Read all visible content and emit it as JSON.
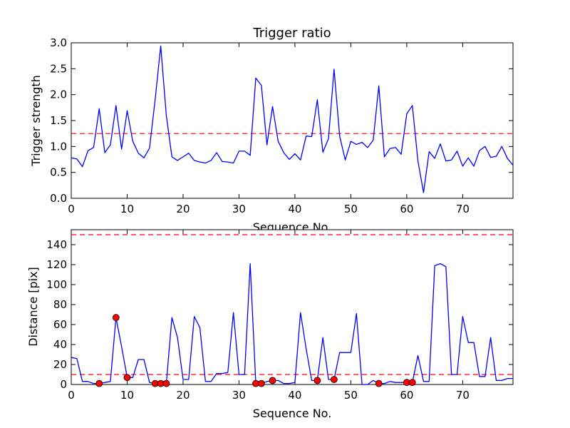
{
  "chart_data": [
    {
      "type": "line",
      "title": "Trigger ratio",
      "xlabel": "Sequence No.",
      "ylabel": "Trigger strength",
      "xlim": [
        0,
        79
      ],
      "ylim": [
        0,
        3.0
      ],
      "x_ticks": [
        0,
        10,
        20,
        30,
        40,
        50,
        60,
        70
      ],
      "y_ticks": [
        0.0,
        0.5,
        1.0,
        1.5,
        2.0,
        2.5,
        3.0
      ],
      "y_tick_labels": [
        "0.0",
        "0.5",
        "1.0",
        "1.5",
        "2.0",
        "2.5",
        "3.0"
      ],
      "grid": false,
      "series": [
        {
          "color": "#0000ff",
          "values": [
            0.78,
            0.76,
            0.61,
            0.92,
            0.98,
            1.73,
            0.88,
            1.03,
            1.79,
            0.95,
            1.69,
            1.1,
            0.87,
            0.78,
            0.97,
            1.9,
            2.94,
            1.6,
            0.8,
            0.73,
            0.8,
            0.87,
            0.73,
            0.7,
            0.68,
            0.73,
            0.88,
            0.71,
            0.7,
            0.68,
            0.91,
            0.91,
            0.83,
            2.32,
            2.18,
            1.03,
            1.77,
            1.1,
            0.88,
            0.75,
            0.86,
            0.74,
            1.2,
            1.19,
            1.9,
            0.89,
            1.15,
            2.49,
            1.2,
            0.74,
            1.1,
            1.04,
            1.08,
            0.98,
            1.12,
            2.17,
            0.8,
            0.96,
            0.98,
            0.85,
            1.63,
            1.79,
            0.72,
            0.11,
            0.9,
            0.77,
            1.05,
            0.72,
            0.74,
            0.91,
            0.62,
            0.78,
            0.62,
            0.92,
            1.0,
            0.79,
            0.81,
            1.0,
            0.77,
            0.64
          ]
        }
      ],
      "reference_lines": [
        {
          "y": 1.25,
          "color": "#ff0000",
          "style": "dashed"
        }
      ]
    },
    {
      "type": "line",
      "xlabel": "Sequence No.",
      "ylabel": "Distance [pix]",
      "xlim": [
        0,
        79
      ],
      "ylim": [
        0,
        155
      ],
      "x_ticks": [
        0,
        10,
        20,
        30,
        40,
        50,
        60,
        70
      ],
      "y_ticks": [
        0,
        20,
        40,
        60,
        80,
        100,
        120,
        140
      ],
      "y_tick_labels": [
        "0",
        "20",
        "40",
        "60",
        "80",
        "100",
        "120",
        "140"
      ],
      "grid": false,
      "series": [
        {
          "color": "#0000ff",
          "values": [
            27,
            26,
            3,
            3,
            1,
            1,
            2,
            3,
            67,
            38,
            7,
            7,
            25,
            25,
            2,
            1,
            1,
            1,
            67,
            47,
            5,
            5,
            68,
            57,
            3,
            3,
            11,
            11,
            12,
            72,
            10,
            10,
            121,
            1,
            1,
            3,
            4,
            4,
            1,
            1,
            2,
            72,
            36,
            4,
            4,
            47,
            5,
            5,
            32,
            32,
            32,
            71,
            0,
            0,
            4,
            1,
            1,
            3,
            2,
            2,
            2,
            2,
            29,
            3,
            3,
            119,
            121,
            118,
            10,
            10,
            68,
            42,
            42,
            8,
            8,
            47,
            4,
            4,
            6,
            6
          ]
        }
      ],
      "markers": {
        "color": "#ff0000",
        "x": [
          5,
          8,
          10,
          15,
          16,
          17,
          33,
          34,
          36,
          44,
          47,
          55,
          60,
          61
        ],
        "y": [
          1,
          67,
          7,
          1,
          1,
          1,
          1,
          1,
          4,
          4,
          5,
          1,
          2,
          2
        ]
      },
      "reference_lines": [
        {
          "y": 150,
          "color": "#ff0000",
          "style": "dashed"
        },
        {
          "y": 10,
          "color": "#ff0000",
          "style": "dashed"
        }
      ]
    }
  ]
}
